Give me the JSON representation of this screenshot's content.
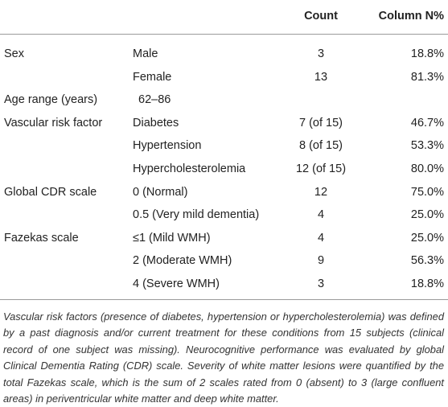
{
  "table": {
    "header": {
      "count": "Count",
      "percent": "Column N%"
    },
    "rows": [
      {
        "group": "Sex",
        "item": "Male",
        "count": "3",
        "percent": "18.8%"
      },
      {
        "item": "Female",
        "count": "13",
        "percent": "81.3%"
      },
      {
        "group": "Age range (years)",
        "item": "62–86"
      },
      {
        "group": "Vascular risk factor",
        "item": "Diabetes",
        "count": "7 (of 15)",
        "percent": "46.7%"
      },
      {
        "item": "Hypertension",
        "count": "8 (of 15)",
        "percent": "53.3%"
      },
      {
        "item": "Hypercholesterolemia",
        "count": "12 (of 15)",
        "percent": "80.0%"
      },
      {
        "group": "Global CDR scale",
        "item": "0 (Normal)",
        "count": "12",
        "percent": "75.0%"
      },
      {
        "item": "0.5 (Very mild dementia)",
        "count": "4",
        "percent": "25.0%"
      },
      {
        "group": "Fazekas scale",
        "item": "≤1 (Mild WMH)",
        "count": "4",
        "percent": "25.0%"
      },
      {
        "item": "2 (Moderate WMH)",
        "count": "9",
        "percent": "56.3%"
      },
      {
        "item": "4 (Severe WMH)",
        "count": "3",
        "percent": "18.8%"
      }
    ],
    "footnote": "Vascular risk factors (presence of diabetes, hypertension or hypercholesterolemia) was defined by a past diagnosis and/or current treatment for these conditions from 15 subjects (clinical record of one subject was missing). Neurocognitive performance was evaluated by global Clinical Dementia Rating (CDR) scale. Severity of white matter lesions were quantified by the total Fazekas scale, which is the sum of 2 scales rated from 0 (absent) to 3 (large confluent areas) in periventricular white matter and deep white matter."
  }
}
